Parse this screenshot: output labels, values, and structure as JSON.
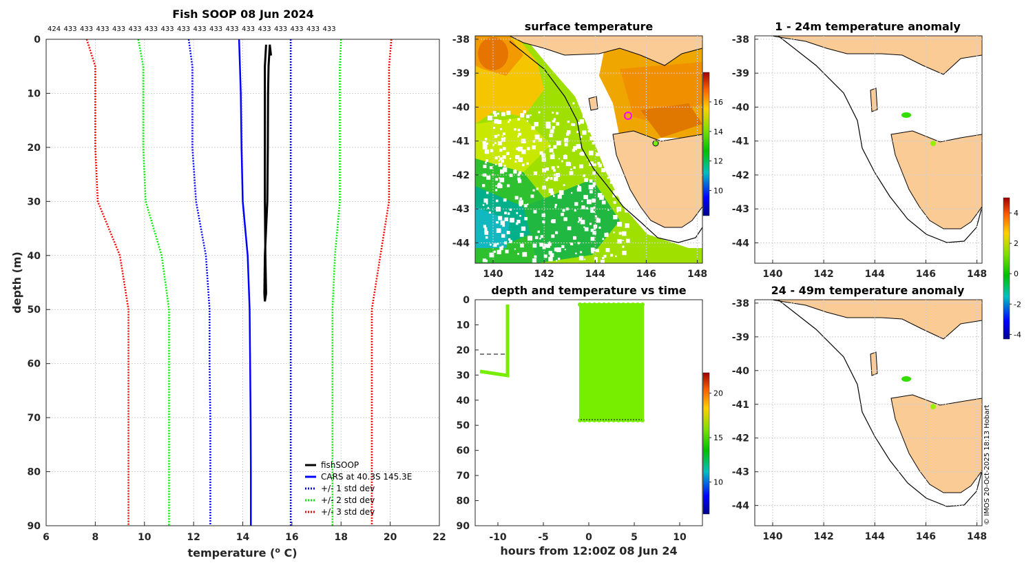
{
  "chart_data": [
    {
      "type": "line",
      "title": "Fish SOOP 08 Jun 2024",
      "xlabel": "temperature (",
      "xlabel_sup": "o",
      "xlabel_tail": " C)",
      "ylabel": "depth (m)",
      "xlim": [
        6,
        22
      ],
      "ylim": [
        90,
        0
      ],
      "xticks": [
        6,
        8,
        10,
        12,
        14,
        16,
        18,
        20,
        22
      ],
      "yticks": [
        0,
        10,
        20,
        30,
        40,
        50,
        60,
        70,
        80,
        90
      ],
      "top_counts": [
        "424",
        "433",
        "433",
        "433",
        "433",
        "433",
        "433",
        "433",
        "433",
        "433",
        "433",
        "433",
        "433",
        "433",
        "433",
        "433",
        "433",
        "433"
      ],
      "series": [
        {
          "name": "fishSOOP",
          "color": "#000000",
          "style": "solid",
          "depth": [
            1,
            5,
            10,
            20,
            30,
            40,
            47,
            48.5,
            47,
            40,
            30,
            20,
            10,
            5,
            1,
            3
          ],
          "temp": [
            14.95,
            14.9,
            14.9,
            14.9,
            14.9,
            14.92,
            14.95,
            14.9,
            14.88,
            14.9,
            15.0,
            15.02,
            15.03,
            15.05,
            15.1,
            15.15
          ]
        },
        {
          "name": "CARS at 40.3S 145.3E",
          "color": "#0000ff",
          "style": "solid",
          "depth": [
            0,
            10,
            20,
            30,
            40,
            50,
            60,
            70,
            80,
            90
          ],
          "temp": [
            13.85,
            13.92,
            13.95,
            14.0,
            14.2,
            14.28,
            14.3,
            14.32,
            14.33,
            14.33
          ]
        },
        {
          "name": "+/- 1 std dev",
          "color": "#0000ff",
          "style": "dotted",
          "depth": [
            0,
            5,
            10,
            20,
            30,
            40,
            50,
            60,
            70,
            80,
            90
          ],
          "temp": [
            11.8,
            11.95,
            11.95,
            11.95,
            12.1,
            12.5,
            12.65,
            12.65,
            12.68,
            12.68,
            12.68
          ],
          "temp2": [
            15.95,
            15.95,
            15.95,
            15.95,
            15.95,
            15.95,
            15.95,
            15.95,
            15.95,
            15.95,
            15.95
          ]
        },
        {
          "name": "+/- 2 std dev",
          "color": "#00ee00",
          "style": "dotted",
          "depth": [
            0,
            5,
            10,
            20,
            30,
            40,
            50,
            60,
            70,
            80,
            90
          ],
          "temp": [
            9.75,
            9.95,
            9.95,
            9.95,
            10.05,
            10.7,
            11.0,
            11.0,
            11.0,
            11.0,
            11.0
          ],
          "temp2": [
            18.0,
            17.95,
            17.95,
            17.95,
            17.95,
            17.75,
            17.65,
            17.65,
            17.65,
            17.65,
            17.65
          ]
        },
        {
          "name": "+/- 3 std dev",
          "color": "#ff0000",
          "style": "dotted",
          "depth": [
            0,
            5,
            10,
            20,
            30,
            40,
            50,
            60,
            70,
            80,
            90
          ],
          "temp": [
            7.65,
            8.0,
            8.0,
            8.0,
            8.1,
            9.0,
            9.35,
            9.35,
            9.35,
            9.35,
            9.35
          ],
          "temp2": [
            20.05,
            19.95,
            19.95,
            19.95,
            19.95,
            19.6,
            19.25,
            19.25,
            19.25,
            19.25,
            19.25
          ]
        }
      ]
    },
    {
      "type": "heatmap",
      "title": "surface temperature",
      "xticks": [
        140,
        142,
        144,
        146,
        148
      ],
      "yticks": [
        -38,
        -39,
        -40,
        -41,
        -42,
        -43,
        -44
      ],
      "colorbar_ticks": [
        10,
        12,
        14,
        16
      ]
    },
    {
      "type": "scatter",
      "title": "depth and temperature vs time",
      "xlabel": "hours from 12:00Z 08 Jun 24",
      "xlim": [
        -12.5,
        12.5
      ],
      "ylim": [
        90,
        0
      ],
      "xticks": [
        -10,
        -5,
        0,
        5,
        10
      ],
      "yticks": [
        0,
        10,
        20,
        30,
        40,
        50,
        60,
        70,
        80,
        90
      ],
      "colorbar_ticks": [
        10,
        15,
        20
      ],
      "marker_color": "#77ee00"
    },
    {
      "type": "heatmap",
      "title": "1 - 24m temperature anomaly",
      "xticks": [
        140,
        142,
        144,
        146,
        148
      ],
      "yticks": [
        -38,
        -39,
        -40,
        -41,
        -42,
        -43,
        -44
      ],
      "colorbar_ticks": [
        4,
        2,
        0,
        -2,
        -4
      ]
    },
    {
      "type": "heatmap",
      "title": "24 - 49m temperature anomaly",
      "xticks": [
        140,
        142,
        144,
        146,
        148
      ],
      "yticks": [
        -38,
        -39,
        -40,
        -41,
        -42,
        -43,
        -44
      ]
    }
  ],
  "credit": "© IMOS 20-Oct-2025 18:13 Hobart",
  "colors": {
    "land": "#fbcb96",
    "accent_magenta": "#ff00ff"
  }
}
